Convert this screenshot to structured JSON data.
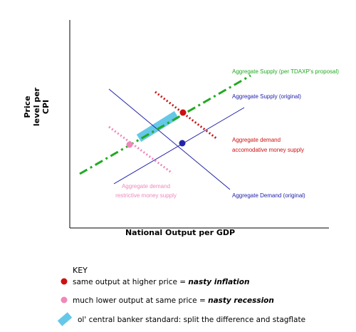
{
  "diagram": {
    "y_axis_title": [
      "Price",
      "level per",
      "CPI"
    ],
    "x_axis_title": "National Output per GDP",
    "labels": {
      "as_proposal": "Aggregate Supply (per TDAXP's proposal)",
      "as_original": "Aggregate Supply (original)",
      "ad_accommodative": [
        "Aggregate demand",
        "accomodative money supply"
      ],
      "ad_restrictive": [
        "Aggregate demand",
        "restrictive money supply"
      ],
      "ad_original": "Aggregate Demand (original)"
    },
    "colors": {
      "green": "#22aa22",
      "blue": "#2222aa",
      "red": "#cc1111",
      "pink": "#ee88bb",
      "cyan": "#66c8e8"
    }
  },
  "key": {
    "title": "KEY",
    "items": [
      {
        "symbol": "red-dot",
        "text": "same output at higher price = ",
        "emphasis": "nasty inflation"
      },
      {
        "symbol": "pink-dot",
        "text": "much lower output at same price = ",
        "emphasis": "nasty recession"
      },
      {
        "symbol": "cyan-bar",
        "text": "ol' central banker standard: split the difference and stagflate",
        "emphasis": ""
      }
    ]
  }
}
